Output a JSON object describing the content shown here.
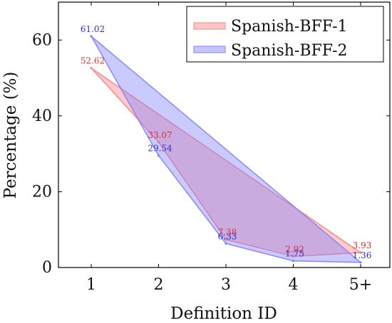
{
  "chart_data": {
    "type": "area",
    "categories": [
      "1",
      "2",
      "3",
      "4",
      "5+"
    ],
    "xlabel": "Definition ID",
    "ylabel": "Percentage (%)",
    "ylim": [
      0,
      70
    ],
    "yticks": [
      0,
      20,
      40,
      60
    ],
    "grid": false,
    "legend_position": "top-right",
    "series": [
      {
        "name": "Spanish-BFF-1",
        "color": "#ff8080",
        "values": [
          52.62,
          33.07,
          7.38,
          2.92,
          3.93
        ],
        "labels": [
          "52.62",
          "33.07",
          "7.38",
          "2.92",
          "3.93"
        ]
      },
      {
        "name": "Spanish-BFF-2",
        "color": "#8080ff",
        "values": [
          61.02,
          29.54,
          6.33,
          1.75,
          1.36
        ],
        "labels": [
          "61.02",
          "29.54",
          "6.33",
          "1.75",
          "1.36"
        ]
      }
    ]
  }
}
